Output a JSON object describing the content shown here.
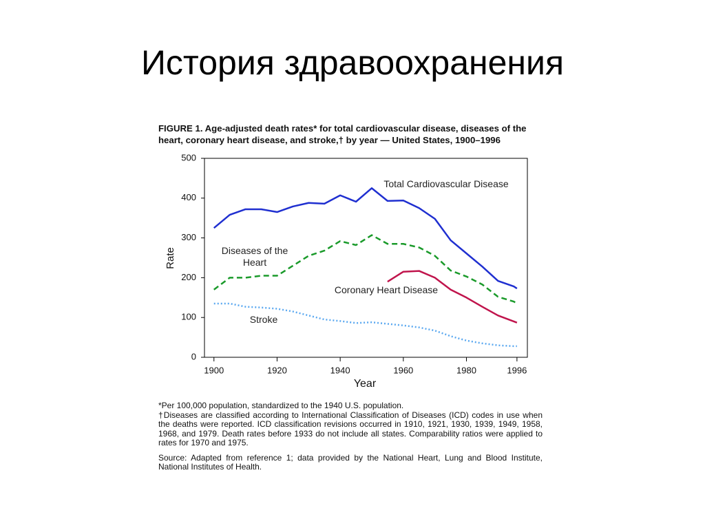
{
  "slide_title": "История здравоохранения",
  "chart_data": {
    "type": "line",
    "title": "FIGURE 1. Age-adjusted death rates* for total cardiovascular disease, diseases of the heart, coronary heart disease, and stroke,† by year — United States, 1900–1996",
    "x_label": "Year",
    "y_label": "Rate",
    "x": [
      1900,
      1905,
      1910,
      1915,
      1920,
      1925,
      1930,
      1935,
      1940,
      1945,
      1950,
      1955,
      1960,
      1965,
      1970,
      1975,
      1980,
      1985,
      1990,
      1995,
      1996
    ],
    "series": [
      {
        "name": "Total Cardiovascular Disease",
        "color": "#1f2fd0",
        "style": "solid",
        "values": [
          325,
          358,
          372,
          372,
          365,
          379,
          388,
          386,
          407,
          391,
          425,
          393,
          394,
          375,
          348,
          294,
          261,
          228,
          192,
          178,
          173
        ]
      },
      {
        "name": "Diseases of the Heart",
        "color": "#1a9a2a",
        "style": "dashed",
        "values": [
          170,
          200,
          200,
          205,
          205,
          230,
          255,
          268,
          292,
          282,
          307,
          285,
          285,
          276,
          255,
          218,
          203,
          183,
          152,
          140,
          135
        ]
      },
      {
        "name": "Coronary Heart Disease",
        "color": "#c0144c",
        "style": "solid",
        "values": [
          null,
          null,
          null,
          null,
          null,
          null,
          null,
          null,
          null,
          null,
          null,
          190,
          215,
          217,
          200,
          170,
          150,
          127,
          105,
          90,
          87
        ]
      },
      {
        "name": "Stroke",
        "color": "#5aa8f0",
        "style": "dotted",
        "values": [
          135,
          135,
          127,
          125,
          122,
          115,
          105,
          95,
          91,
          86,
          88,
          84,
          80,
          75,
          67,
          53,
          42,
          35,
          30,
          28,
          28
        ]
      }
    ],
    "xlim": [
      1897,
      1999.3
    ],
    "ylim": [
      0,
      500
    ],
    "xticks": [
      1900,
      1920,
      1940,
      1960,
      1980,
      1996
    ],
    "yticks": [
      0,
      100,
      200,
      300,
      400,
      500
    ],
    "grid": false,
    "footnotes": [
      "*Per 100,000 population, standardized to the 1940 U.S. population.",
      "†Diseases are classified according to International Classification of Diseases (ICD) codes in use when the deaths were reported. ICD classification revisions occurred in 1910, 1921, 1930, 1939, 1949, 1958, 1968, and 1979. Death rates before 1933 do not include all states. Comparability ratios were applied to rates for 1970 and 1975."
    ],
    "source": "Source: Adapted from reference 1; data provided by the National Heart, Lung and Blood Institute, National Institutes of Health."
  }
}
